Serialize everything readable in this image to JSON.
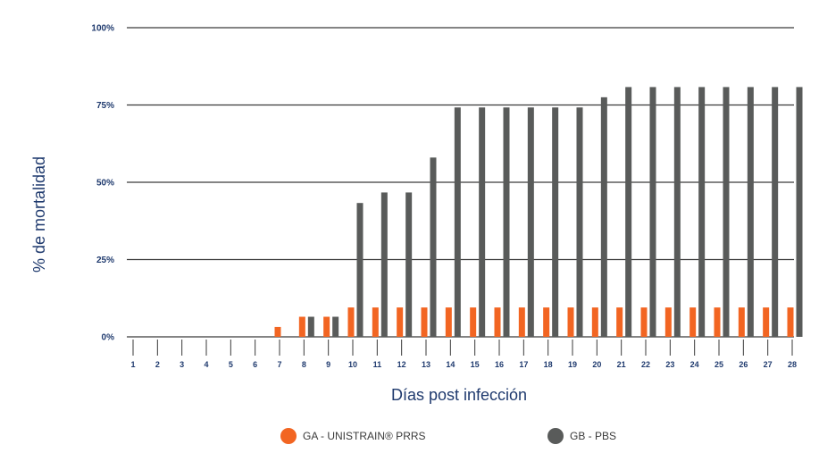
{
  "chart_data": {
    "type": "bar",
    "xlabel": "Días post infección",
    "ylabel": "% de mortalidad",
    "ylim": [
      0,
      100
    ],
    "yticks": [
      "0%",
      "25%",
      "50%",
      "75%",
      "100%"
    ],
    "grid": "horizontal",
    "legend_position": "bottom",
    "categories": [
      "1",
      "2",
      "3",
      "4",
      "5",
      "6",
      "7",
      "8",
      "9",
      "10",
      "11",
      "12",
      "13",
      "14",
      "15",
      "16",
      "17",
      "18",
      "19",
      "20",
      "21",
      "22",
      "23",
      "24",
      "25",
      "26",
      "27",
      "28"
    ],
    "series": [
      {
        "name": "GA - UNISTRAIN® PRRS",
        "color": "#f26522",
        "values": [
          0,
          0,
          0,
          0,
          0,
          0,
          3.2,
          6.5,
          6.5,
          9.5,
          9.5,
          9.5,
          9.5,
          9.5,
          9.5,
          9.5,
          9.5,
          9.5,
          9.5,
          9.5,
          9.5,
          9.5,
          9.5,
          9.5,
          9.5,
          9.5,
          9.5,
          9.5
        ]
      },
      {
        "name": "GB - PBS",
        "color": "#595b5a",
        "values": [
          0,
          0,
          0,
          0,
          0,
          0,
          0,
          6.5,
          6.5,
          43.3,
          46.7,
          46.7,
          58,
          74.2,
          74.2,
          74.2,
          74.2,
          74.2,
          74.2,
          77.5,
          80.8,
          80.8,
          80.8,
          80.8,
          80.8,
          80.8,
          80.8,
          80.8
        ]
      }
    ]
  }
}
